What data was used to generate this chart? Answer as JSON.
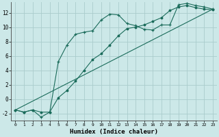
{
  "xlabel": "Humidex (Indice chaleur)",
  "bg_color": "#cce8e8",
  "grid_color": "#aacccc",
  "line_color": "#1a6b5a",
  "xlim": [
    -0.5,
    23.5
  ],
  "ylim": [
    -3.0,
    13.5
  ],
  "xticks": [
    0,
    1,
    2,
    3,
    4,
    5,
    6,
    7,
    8,
    9,
    10,
    11,
    12,
    13,
    14,
    15,
    16,
    17,
    18,
    19,
    20,
    21,
    22,
    23
  ],
  "yticks": [
    -2,
    0,
    2,
    4,
    6,
    8,
    10,
    12
  ],
  "curve1_x": [
    0,
    1,
    2,
    3,
    4,
    5,
    6,
    7,
    8,
    9,
    10,
    11,
    12,
    13,
    14,
    15,
    16,
    17,
    18,
    19,
    20,
    21,
    22,
    23
  ],
  "curve1_y": [
    -1.5,
    -1.8,
    -1.5,
    -2.5,
    -1.8,
    5.2,
    7.5,
    9.0,
    9.3,
    9.5,
    11.0,
    11.8,
    11.7,
    10.5,
    10.2,
    9.7,
    9.6,
    10.3,
    10.3,
    13.1,
    13.3,
    13.0,
    12.8,
    12.5
  ],
  "curve2_x": [
    0,
    1,
    2,
    3,
    4,
    5,
    6,
    7,
    8,
    9,
    10,
    11,
    12,
    13,
    14,
    15,
    16,
    17,
    18,
    19,
    20,
    21,
    22,
    23
  ],
  "curve2_y": [
    -1.5,
    -1.8,
    -1.5,
    -1.8,
    -1.8,
    0.2,
    1.2,
    2.5,
    4.0,
    5.5,
    6.3,
    7.5,
    8.8,
    9.8,
    10.0,
    10.3,
    10.8,
    11.3,
    12.3,
    12.8,
    13.0,
    12.7,
    12.5,
    12.4
  ],
  "line_x": [
    0,
    23
  ],
  "line_y": [
    -1.5,
    12.5
  ]
}
